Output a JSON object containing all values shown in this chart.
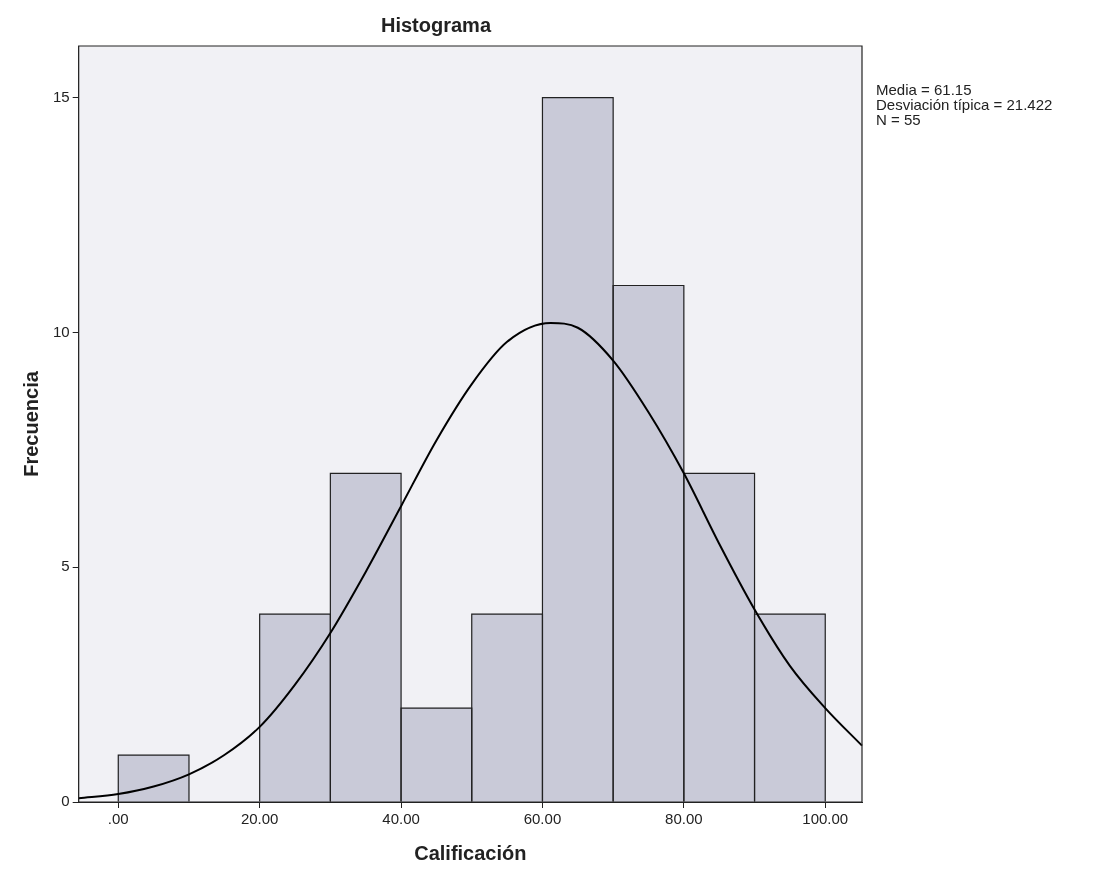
{
  "chart_data": {
    "type": "histogram",
    "title": "Histograma",
    "xlabel": "Calificación",
    "ylabel": "Frecuencia",
    "bins": [
      0,
      10,
      20,
      30,
      40,
      50,
      60,
      70,
      80,
      90,
      100
    ],
    "values": [
      1,
      0,
      4,
      7,
      2,
      4,
      15,
      11,
      7,
      4
    ],
    "color": "#c9cad8",
    "series": [
      {
        "type": "line",
        "color": "#000000",
        "marker": "none",
        "x": [
          -5.6,
          0,
          5,
          10,
          15,
          20,
          25,
          30,
          35,
          40,
          45,
          50,
          55,
          61.15,
          65,
          70,
          75,
          80,
          85,
          90,
          95,
          100,
          105.2
        ],
        "values": [
          0.08,
          0.17,
          0.33,
          0.59,
          1.0,
          1.6,
          2.5,
          3.6,
          4.9,
          6.3,
          7.7,
          8.9,
          9.8,
          10.2,
          10.1,
          9.4,
          8.3,
          7.0,
          5.5,
          4.1,
          2.9,
          2.0,
          1.2
        ]
      }
    ],
    "xlim": [
      -5.6,
      105.2
    ],
    "xticks": [
      {
        "value": 0,
        "label": ".00"
      },
      {
        "value": 20,
        "label": "20.00"
      },
      {
        "value": 40,
        "label": "40.00"
      },
      {
        "value": 60,
        "label": "60.00"
      },
      {
        "value": 80,
        "label": "80.00"
      },
      {
        "value": 100,
        "label": "100.00"
      }
    ],
    "ylim": [
      0,
      16.1
    ],
    "yticks": [
      0,
      5,
      10,
      15
    ],
    "annotations": [
      "Media = 61.15",
      "Desviación típica = 21.422",
      "N = 55"
    ]
  }
}
